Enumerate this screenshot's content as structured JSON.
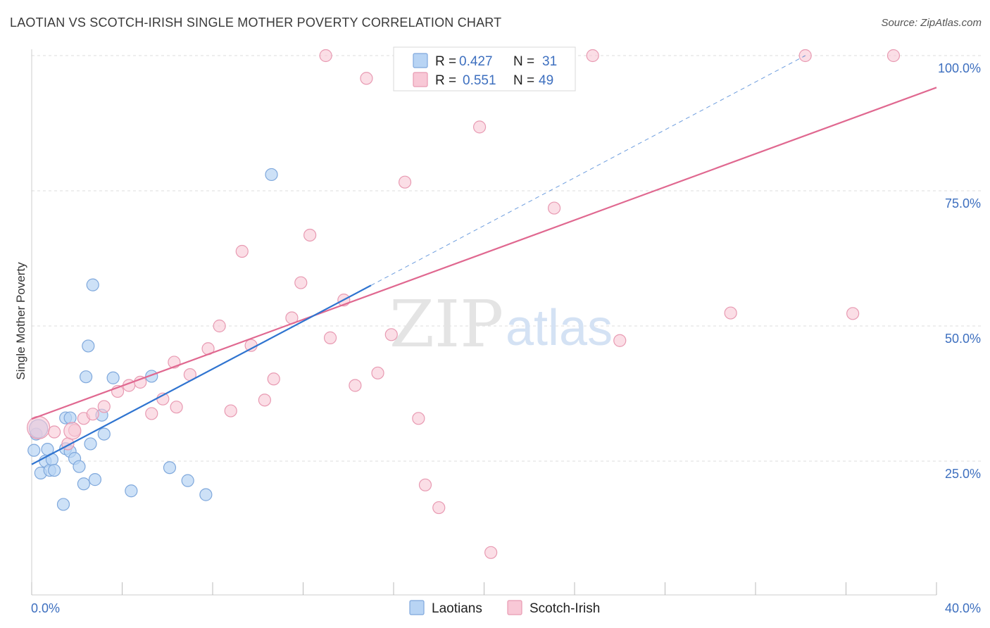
{
  "title": "LAOTIAN VS SCOTCH-IRISH SINGLE MOTHER POVERTY CORRELATION CHART",
  "source": "Source: ZipAtlas.com",
  "watermark": {
    "zip": "ZIP",
    "atlas": "atlas"
  },
  "colors": {
    "laotians_fill": "#b8d4f4",
    "laotians_stroke": "#7fa8dc",
    "laotians_line": "#2f74d0",
    "scotch_fill": "#f8c8d6",
    "scotch_stroke": "#e89ab2",
    "scotch_line": "#e06890",
    "grid": "#dcdcdc",
    "tick_label": "#3d6fbf"
  },
  "legend": {
    "rows": [
      {
        "r_label": "R =",
        "r_value": "0.427",
        "n_label": "N =",
        "n_value": "31"
      },
      {
        "r_label": "R =",
        "r_value": "0.551",
        "n_label": "N =",
        "n_value": "49"
      }
    ]
  },
  "bottom_legend": [
    "Laotians",
    "Scotch-Irish"
  ],
  "chart_data": {
    "type": "scatter",
    "title": "LAOTIAN VS SCOTCH-IRISH SINGLE MOTHER POVERTY CORRELATION CHART",
    "xlabel": "",
    "ylabel": "Single Mother Poverty",
    "xlim": [
      0,
      40
    ],
    "ylim": [
      0,
      102
    ],
    "x_tick_labels": [
      "0.0%",
      "40.0%"
    ],
    "y_ticks": [
      25,
      50,
      75,
      100
    ],
    "y_tick_labels": [
      "25.0%",
      "50.0%",
      "75.0%",
      "100.0%"
    ],
    "grid": true,
    "legend_position": "top-center",
    "series": [
      {
        "name": "Laotians",
        "color": "#7fa8dc",
        "points": [
          [
            0.1,
            27.0
          ],
          [
            0.2,
            30.0
          ],
          [
            0.4,
            22.8
          ],
          [
            0.6,
            25.0
          ],
          [
            0.7,
            27.2
          ],
          [
            0.8,
            23.3
          ],
          [
            0.9,
            25.3
          ],
          [
            1.0,
            23.3
          ],
          [
            1.4,
            17.0
          ],
          [
            1.5,
            33.0
          ],
          [
            1.5,
            27.3
          ],
          [
            1.7,
            33.0
          ],
          [
            1.7,
            26.8
          ],
          [
            1.9,
            25.5
          ],
          [
            2.1,
            24.0
          ],
          [
            2.3,
            20.8
          ],
          [
            2.4,
            40.6
          ],
          [
            2.5,
            46.3
          ],
          [
            2.6,
            28.2
          ],
          [
            2.7,
            57.6
          ],
          [
            2.8,
            21.6
          ],
          [
            3.1,
            33.5
          ],
          [
            3.2,
            30.0
          ],
          [
            3.6,
            40.4
          ],
          [
            4.4,
            19.5
          ],
          [
            5.3,
            40.7
          ],
          [
            6.1,
            23.8
          ],
          [
            6.9,
            21.4
          ],
          [
            7.7,
            18.8
          ],
          [
            10.6,
            78.0
          ],
          [
            0.3,
            31.0
          ]
        ],
        "trend": {
          "x": [
            0,
            15
          ],
          "y": [
            24.4,
            57.5
          ],
          "dashed_extension": {
            "x": [
              15,
              34.2
            ],
            "y": [
              57.5,
              100
            ]
          }
        }
      },
      {
        "name": "Scotch-Irish",
        "color": "#e89ab2",
        "points": [
          [
            0.3,
            31.2
          ],
          [
            1.0,
            30.4
          ],
          [
            1.6,
            28.2
          ],
          [
            1.9,
            30.7
          ],
          [
            2.3,
            32.9
          ],
          [
            2.7,
            33.7
          ],
          [
            3.2,
            35.1
          ],
          [
            3.8,
            37.9
          ],
          [
            4.3,
            39.0
          ],
          [
            4.8,
            39.6
          ],
          [
            5.3,
            33.8
          ],
          [
            5.8,
            36.5
          ],
          [
            6.3,
            43.3
          ],
          [
            6.4,
            35.0
          ],
          [
            7.0,
            41.0
          ],
          [
            7.8,
            45.8
          ],
          [
            8.3,
            50.0
          ],
          [
            8.8,
            34.3
          ],
          [
            9.3,
            63.8
          ],
          [
            9.7,
            46.4
          ],
          [
            10.3,
            36.3
          ],
          [
            10.7,
            40.2
          ],
          [
            11.5,
            51.5
          ],
          [
            11.9,
            58.0
          ],
          [
            12.3,
            66.8
          ],
          [
            13.0,
            100.0
          ],
          [
            13.2,
            47.8
          ],
          [
            13.8,
            54.8
          ],
          [
            14.3,
            39.0
          ],
          [
            14.8,
            95.8
          ],
          [
            15.3,
            41.3
          ],
          [
            15.9,
            48.4
          ],
          [
            16.5,
            76.6
          ],
          [
            17.1,
            32.9
          ],
          [
            17.4,
            20.6
          ],
          [
            18.0,
            16.4
          ],
          [
            19.3,
            100.0
          ],
          [
            19.8,
            86.8
          ],
          [
            20.3,
            8.1
          ],
          [
            21.2,
            100.0
          ],
          [
            22.0,
            100.0
          ],
          [
            23.1,
            71.8
          ],
          [
            24.8,
            100.0
          ],
          [
            26.0,
            47.3
          ],
          [
            30.9,
            52.4
          ],
          [
            34.2,
            100.0
          ],
          [
            36.3,
            52.3
          ],
          [
            38.1,
            100.0
          ],
          [
            1.8,
            30.6
          ]
        ],
        "trend": {
          "x": [
            0,
            40
          ],
          "y": [
            32.8,
            94.1
          ]
        }
      }
    ]
  }
}
